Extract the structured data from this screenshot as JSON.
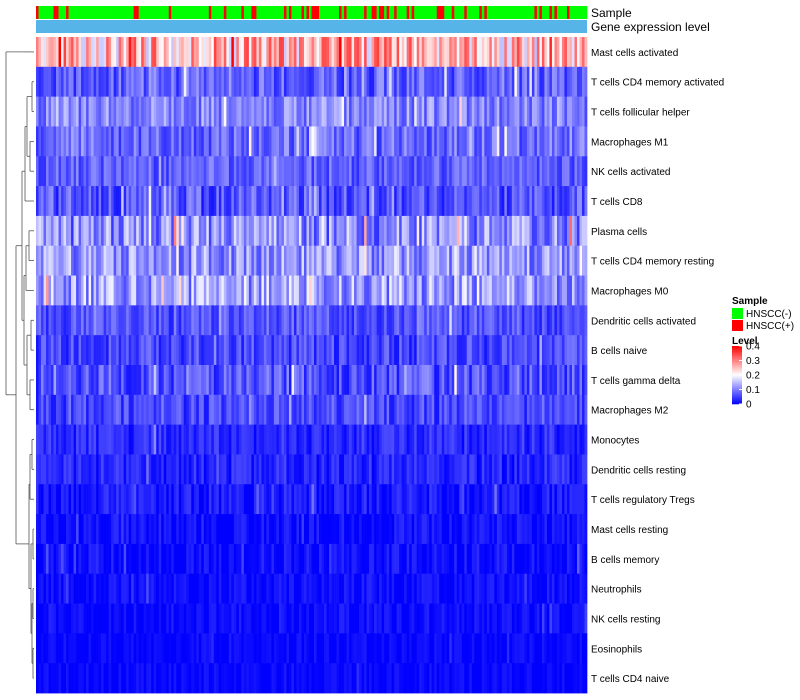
{
  "chart_data": {
    "type": "heatmap",
    "title": "",
    "num_samples": 220,
    "rows": [
      {
        "label": "Mast cells activated",
        "mean": 0.24,
        "spread": 0.1
      },
      {
        "label": "T cells CD4 memory activated",
        "mean": 0.07,
        "spread": 0.05
      },
      {
        "label": "T cells follicular helper",
        "mean": 0.1,
        "spread": 0.05
      },
      {
        "label": "Macrophages M1",
        "mean": 0.08,
        "spread": 0.05
      },
      {
        "label": "NK cells activated",
        "mean": 0.07,
        "spread": 0.04
      },
      {
        "label": "T cells CD8",
        "mean": 0.06,
        "spread": 0.05
      },
      {
        "label": "Plasma cells",
        "mean": 0.1,
        "spread": 0.07
      },
      {
        "label": "T cells CD4 memory resting",
        "mean": 0.11,
        "spread": 0.06
      },
      {
        "label": "Macrophages M0",
        "mean": 0.12,
        "spread": 0.07
      },
      {
        "label": "Dendritic cells activated",
        "mean": 0.06,
        "spread": 0.04
      },
      {
        "label": "B cells naive",
        "mean": 0.05,
        "spread": 0.04
      },
      {
        "label": "T cells gamma delta",
        "mean": 0.06,
        "spread": 0.05
      },
      {
        "label": "Macrophages M2",
        "mean": 0.05,
        "spread": 0.04
      },
      {
        "label": "Monocytes",
        "mean": 0.03,
        "spread": 0.03
      },
      {
        "label": "Dendritic cells resting",
        "mean": 0.025,
        "spread": 0.03
      },
      {
        "label": "T cells regulatory  Tregs",
        "mean": 0.015,
        "spread": 0.03
      },
      {
        "label": "Mast cells resting",
        "mean": 0.008,
        "spread": 0.025
      },
      {
        "label": "B cells memory",
        "mean": 0.008,
        "spread": 0.025
      },
      {
        "label": "Neutrophils",
        "mean": 0.008,
        "spread": 0.02
      },
      {
        "label": "NK cells resting",
        "mean": 0.006,
        "spread": 0.02
      },
      {
        "label": "Eosinophils",
        "mean": 0.004,
        "spread": 0.015
      },
      {
        "label": "T cells CD4 naive",
        "mean": 0.004,
        "spread": 0.015
      }
    ],
    "annotation_tracks": [
      {
        "name": "Sample"
      },
      {
        "name": "Gene expression level"
      }
    ],
    "sample_groups": [
      {
        "name": "HNSCC(-)",
        "color": "#00ff00",
        "fraction": 0.8
      },
      {
        "name": "HNSCC(+)",
        "color": "#ff0000",
        "fraction": 0.2
      }
    ],
    "expression_track_color": "#56b4e9",
    "legend_sample": {
      "title": "Sample",
      "items": [
        "HNSCC(-)",
        "HNSCC(+)"
      ]
    },
    "legend_level": {
      "title": "Level",
      "range": [
        0,
        0.4
      ],
      "ticks": [
        "0.4",
        "0.3",
        "0.2",
        "0.1",
        "0"
      ]
    },
    "color_scale": {
      "low": "#0000ff",
      "mid": "#ffffff",
      "high": "#ff0000",
      "min": 0,
      "mid_value": 0.2,
      "max": 0.4
    }
  }
}
